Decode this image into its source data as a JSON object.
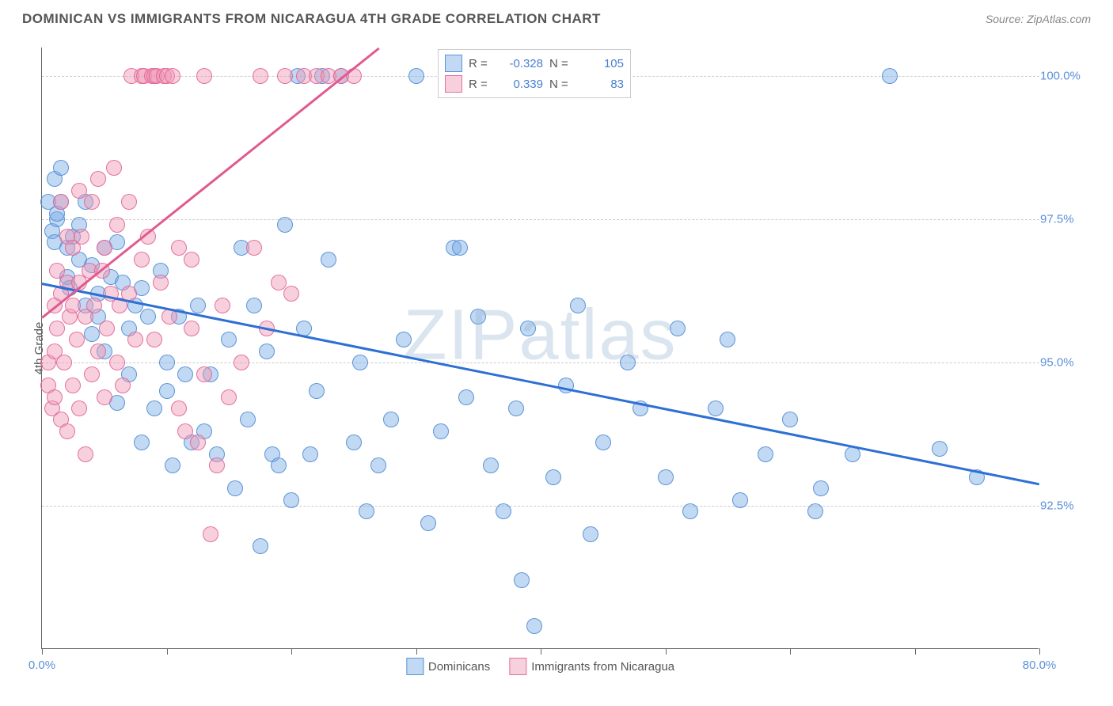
{
  "header": {
    "title": "DOMINICAN VS IMMIGRANTS FROM NICARAGUA 4TH GRADE CORRELATION CHART",
    "source": "Source: ZipAtlas.com"
  },
  "chart": {
    "type": "scatter",
    "ylabel": "4th Grade",
    "xlim": [
      0,
      80
    ],
    "ylim": [
      90,
      100.5
    ],
    "xtick_label_min": "0.0%",
    "xtick_label_max": "80.0%",
    "xtick_positions": [
      0,
      10,
      20,
      30,
      40,
      50,
      60,
      70,
      80
    ],
    "yticks": [
      {
        "v": 92.5,
        "label": "92.5%"
      },
      {
        "v": 95.0,
        "label": "95.0%"
      },
      {
        "v": 97.5,
        "label": "97.5%"
      },
      {
        "v": 100.0,
        "label": "100.0%"
      }
    ],
    "background_color": "#ffffff",
    "grid_color": "#cccccc",
    "axis_color": "#666666",
    "tick_label_color": "#5b8fd9",
    "watermark": "ZIPatlas",
    "watermark_color": "rgba(150,180,210,0.35)",
    "series": [
      {
        "name": "Dominicans",
        "color_fill": "rgba(120,170,230,0.45)",
        "color_stroke": "rgba(80,140,210,0.9)",
        "marker_radius": 10,
        "regression": {
          "x1": 0,
          "y1": 96.4,
          "x2": 80,
          "y2": 92.9,
          "color": "#2d6fd4",
          "width": 2.5
        },
        "stats": {
          "R": "-0.328",
          "N": "105"
        },
        "points": [
          [
            0.5,
            97.8
          ],
          [
            0.8,
            97.3
          ],
          [
            1,
            97.1
          ],
          [
            1,
            98.2
          ],
          [
            1.2,
            97.5
          ],
          [
            1.5,
            97.8
          ],
          [
            1.2,
            97.6
          ],
          [
            1.5,
            98.4
          ],
          [
            2,
            96.5
          ],
          [
            2,
            97.0
          ],
          [
            2.5,
            97.2
          ],
          [
            2.2,
            96.3
          ],
          [
            3,
            96.8
          ],
          [
            3,
            97.4
          ],
          [
            3.5,
            96.0
          ],
          [
            3.5,
            97.8
          ],
          [
            4,
            95.5
          ],
          [
            4,
            96.7
          ],
          [
            4.5,
            96.2
          ],
          [
            4.5,
            95.8
          ],
          [
            5,
            97.0
          ],
          [
            5,
            95.2
          ],
          [
            5.5,
            96.5
          ],
          [
            6,
            94.3
          ],
          [
            6,
            97.1
          ],
          [
            6.5,
            96.4
          ],
          [
            7,
            95.6
          ],
          [
            7,
            94.8
          ],
          [
            7.5,
            96.0
          ],
          [
            8,
            93.6
          ],
          [
            8,
            96.3
          ],
          [
            8.5,
            95.8
          ],
          [
            9,
            94.2
          ],
          [
            9.5,
            96.6
          ],
          [
            10,
            94.5
          ],
          [
            10,
            95.0
          ],
          [
            10.5,
            93.2
          ],
          [
            11,
            95.8
          ],
          [
            11.5,
            94.8
          ],
          [
            12,
            93.6
          ],
          [
            12.5,
            96.0
          ],
          [
            13,
            93.8
          ],
          [
            13.5,
            94.8
          ],
          [
            14,
            93.4
          ],
          [
            15,
            95.4
          ],
          [
            15.5,
            92.8
          ],
          [
            16,
            97.0
          ],
          [
            16.5,
            94.0
          ],
          [
            17,
            96.0
          ],
          [
            17.5,
            91.8
          ],
          [
            18,
            95.2
          ],
          [
            18.5,
            93.4
          ],
          [
            19,
            93.2
          ],
          [
            19.5,
            97.4
          ],
          [
            20,
            92.6
          ],
          [
            20.5,
            100
          ],
          [
            21,
            95.6
          ],
          [
            21.5,
            93.4
          ],
          [
            22,
            94.5
          ],
          [
            22.5,
            100
          ],
          [
            23,
            96.8
          ],
          [
            24,
            100
          ],
          [
            25,
            93.6
          ],
          [
            25.5,
            95.0
          ],
          [
            26,
            92.4
          ],
          [
            27,
            93.2
          ],
          [
            28,
            94.0
          ],
          [
            29,
            95.4
          ],
          [
            30,
            100
          ],
          [
            31,
            92.2
          ],
          [
            32,
            93.8
          ],
          [
            33,
            97.0
          ],
          [
            33.5,
            97.0
          ],
          [
            34,
            94.4
          ],
          [
            35,
            95.8
          ],
          [
            36,
            93.2
          ],
          [
            37,
            92.4
          ],
          [
            38,
            94.2
          ],
          [
            38.5,
            91.2
          ],
          [
            39,
            95.6
          ],
          [
            39.5,
            90.4
          ],
          [
            40,
            100
          ],
          [
            41,
            93.0
          ],
          [
            42,
            94.6
          ],
          [
            43,
            96.0
          ],
          [
            43.5,
            100
          ],
          [
            44,
            92.0
          ],
          [
            45,
            93.6
          ],
          [
            46,
            100
          ],
          [
            47,
            95.0
          ],
          [
            48,
            94.2
          ],
          [
            50,
            93.0
          ],
          [
            51,
            95.6
          ],
          [
            52,
            92.4
          ],
          [
            54,
            94.2
          ],
          [
            55,
            95.4
          ],
          [
            56,
            92.6
          ],
          [
            58,
            93.4
          ],
          [
            60,
            94.0
          ],
          [
            62,
            92.4
          ],
          [
            62.5,
            92.8
          ],
          [
            65,
            93.4
          ],
          [
            68,
            100
          ],
          [
            72,
            93.5
          ],
          [
            75,
            93.0
          ]
        ]
      },
      {
        "name": "Immigrants from Nicaragua",
        "color_fill": "rgba(240,150,180,0.45)",
        "color_stroke": "rgba(225,100,150,0.9)",
        "marker_radius": 10,
        "regression": {
          "x1": 0,
          "y1": 95.8,
          "x2": 27,
          "y2": 100.5,
          "color": "#e05a8f",
          "width": 2.5
        },
        "stats": {
          "R": "0.339",
          "N": "83"
        },
        "points": [
          [
            0.5,
            95.0
          ],
          [
            0.5,
            94.6
          ],
          [
            0.8,
            94.2
          ],
          [
            1,
            96.0
          ],
          [
            1,
            95.2
          ],
          [
            1,
            94.4
          ],
          [
            1.2,
            96.6
          ],
          [
            1.2,
            95.6
          ],
          [
            1.5,
            94.0
          ],
          [
            1.5,
            96.2
          ],
          [
            1.5,
            97.8
          ],
          [
            1.8,
            95.0
          ],
          [
            2,
            93.8
          ],
          [
            2,
            96.4
          ],
          [
            2,
            97.2
          ],
          [
            2.2,
            95.8
          ],
          [
            2.5,
            94.6
          ],
          [
            2.5,
            96.0
          ],
          [
            2.5,
            97.0
          ],
          [
            2.8,
            95.4
          ],
          [
            3,
            98.0
          ],
          [
            3,
            94.2
          ],
          [
            3,
            96.4
          ],
          [
            3.2,
            97.2
          ],
          [
            3.5,
            95.8
          ],
          [
            3.5,
            93.4
          ],
          [
            3.8,
            96.6
          ],
          [
            4,
            94.8
          ],
          [
            4,
            97.8
          ],
          [
            4.2,
            96.0
          ],
          [
            4.5,
            95.2
          ],
          [
            4.5,
            98.2
          ],
          [
            4.8,
            96.6
          ],
          [
            5,
            94.4
          ],
          [
            5,
            97.0
          ],
          [
            5.2,
            95.6
          ],
          [
            5.5,
            96.2
          ],
          [
            5.8,
            98.4
          ],
          [
            6,
            95.0
          ],
          [
            6,
            97.4
          ],
          [
            6.2,
            96.0
          ],
          [
            6.5,
            94.6
          ],
          [
            7,
            97.8
          ],
          [
            7,
            96.2
          ],
          [
            7.2,
            100
          ],
          [
            7.5,
            95.4
          ],
          [
            8,
            100
          ],
          [
            8,
            96.8
          ],
          [
            8.2,
            100
          ],
          [
            8.5,
            97.2
          ],
          [
            8.8,
            100
          ],
          [
            9,
            95.4
          ],
          [
            9,
            100
          ],
          [
            9.2,
            100
          ],
          [
            9.5,
            96.4
          ],
          [
            9.8,
            100
          ],
          [
            10,
            100
          ],
          [
            10.2,
            95.8
          ],
          [
            10.5,
            100
          ],
          [
            11,
            97.0
          ],
          [
            11,
            94.2
          ],
          [
            11.5,
            93.8
          ],
          [
            12,
            95.6
          ],
          [
            12,
            96.8
          ],
          [
            12.5,
            93.6
          ],
          [
            13,
            94.8
          ],
          [
            13,
            100
          ],
          [
            13.5,
            92.0
          ],
          [
            14,
            93.2
          ],
          [
            14.5,
            96.0
          ],
          [
            15,
            94.4
          ],
          [
            16,
            95.0
          ],
          [
            17,
            97.0
          ],
          [
            17.5,
            100
          ],
          [
            18,
            95.6
          ],
          [
            19,
            96.4
          ],
          [
            19.5,
            100
          ],
          [
            20,
            96.2
          ],
          [
            21,
            100
          ],
          [
            22,
            100
          ],
          [
            23,
            100
          ],
          [
            24,
            100
          ],
          [
            25,
            100
          ]
        ]
      }
    ],
    "legend_bottom": [
      {
        "label": "Dominicans",
        "fill": "rgba(120,170,230,0.45)",
        "stroke": "rgba(80,140,210,0.9)"
      },
      {
        "label": "Immigrants from Nicaragua",
        "fill": "rgba(240,150,180,0.45)",
        "stroke": "rgba(225,100,150,0.9)"
      }
    ]
  }
}
